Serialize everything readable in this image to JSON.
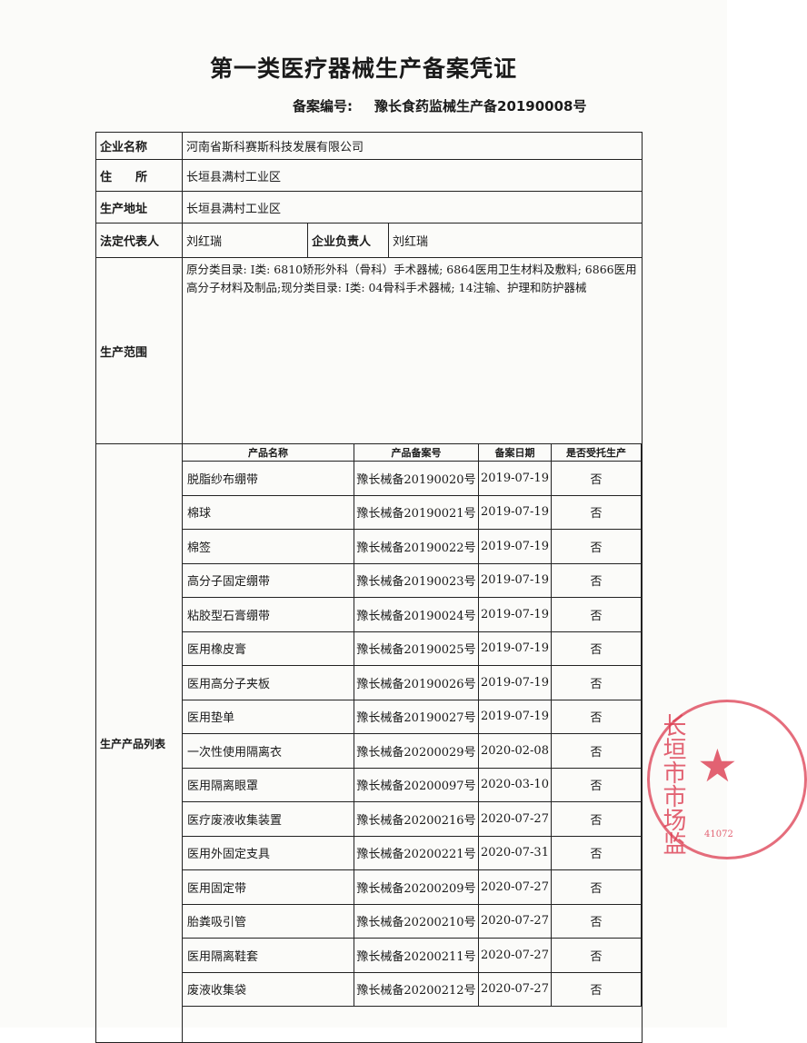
{
  "title": "第一类医疗器械生产备案凭证",
  "record_no_label": "备案编号:",
  "record_no": "豫长食药监械生产备20190008号",
  "fields": {
    "company_label": "企业名称",
    "company": "河南省斯科赛斯科技发展有限公司",
    "address_label": "住　　所",
    "address": "长垣县满村工业区",
    "site_label": "生产地址",
    "site": "长垣县满村工业区",
    "legal_rep_label": "法定代表人",
    "legal_rep": "刘红瑞",
    "head_label": "企业负责人",
    "head": "刘红瑞",
    "scope_label": "生产范围",
    "scope": "原分类目录: Ⅰ类: 6810矫形外科（骨科）手术器械; 6864医用卫生材料及敷料; 6866医用高分子材料及制品;现分类目录: Ⅰ类: 04骨科手术器械; 14注输、护理和防护器械",
    "products_label": "生产产品列表"
  },
  "product_headers": [
    "产品名称",
    "产品备案号",
    "备案日期",
    "是否受托生产"
  ],
  "products": [
    [
      "脱脂纱布绷带",
      "豫长械备20190020号",
      "2019-07-19",
      "否"
    ],
    [
      "棉球",
      "豫长械备20190021号",
      "2019-07-19",
      "否"
    ],
    [
      "棉签",
      "豫长械备20190022号",
      "2019-07-19",
      "否"
    ],
    [
      "高分子固定绷带",
      "豫长械备20190023号",
      "2019-07-19",
      "否"
    ],
    [
      "粘胶型石膏绷带",
      "豫长械备20190024号",
      "2019-07-19",
      "否"
    ],
    [
      "医用橡皮膏",
      "豫长械备20190025号",
      "2019-07-19",
      "否"
    ],
    [
      "医用高分子夹板",
      "豫长械备20190026号",
      "2019-07-19",
      "否"
    ],
    [
      "医用垫单",
      "豫长械备20190027号",
      "2019-07-19",
      "否"
    ],
    [
      "一次性使用隔离衣",
      "豫长械备20200029号",
      "2020-02-08",
      "否"
    ],
    [
      "医用隔离眼罩",
      "豫长械备20200097号",
      "2020-03-10",
      "否"
    ],
    [
      "医疗废液收集装置",
      "豫长械备20200216号",
      "2020-07-27",
      "否"
    ],
    [
      "医用外固定支具",
      "豫长械备20200221号",
      "2020-07-31",
      "否"
    ],
    [
      "医用固定带",
      "豫长械备20200209号",
      "2020-07-27",
      "否"
    ],
    [
      "胎粪吸引管",
      "豫长械备20200210号",
      "2020-07-27",
      "否"
    ],
    [
      "医用隔离鞋套",
      "豫长械备20200211号",
      "2020-07-27",
      "否"
    ],
    [
      "废液收集袋",
      "豫长械备20200212号",
      "2020-07-27",
      "否"
    ]
  ],
  "seal": {
    "text": "长垣市市场监",
    "number": "41072",
    "color": "#dc3c50"
  }
}
